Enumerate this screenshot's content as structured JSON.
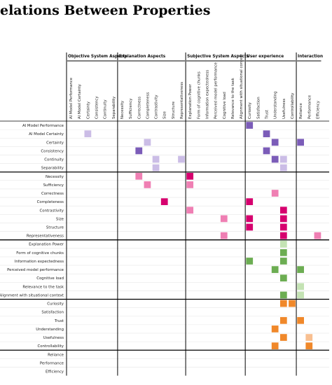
{
  "title": "elations Between Properties",
  "col_groups": [
    {
      "label": "Objective System Aspects",
      "cols": [
        "AI Model Performance",
        "AI Model Certainty",
        "Certainty",
        "Consistency",
        "Continuity",
        "Separability"
      ]
    },
    {
      "label": "Explanation Aspects",
      "cols": [
        "Necessity",
        "Sufficiency",
        "Correctness",
        "Completeness",
        "Contrastivity",
        "Size",
        "Structure",
        "Representativeness"
      ]
    },
    {
      "label": "Subjective System Aspects",
      "cols": [
        "Explanation Power",
        "Form of cognitive chunks",
        "Information expectedness",
        "Perceived model performance",
        "Cognitive load",
        "Relevance to the task",
        "Alignment with situational context"
      ]
    },
    {
      "label": "User experience",
      "cols": [
        "Curiosity",
        "Satisfaction",
        "Trust",
        "Understanding",
        "Usefulness",
        "Controllability"
      ]
    },
    {
      "label": "Interaction",
      "cols": [
        "Reliance",
        "Performance",
        "Efficiency"
      ]
    }
  ],
  "row_groups": [
    [
      "AI Model Performance",
      "AI Model Certainty",
      "Certainty",
      "Consistency",
      "Continuity",
      "Separability"
    ],
    [
      "Necessity",
      "Sufficiency",
      "Correctness",
      "Completeness",
      "Contrastivity",
      "Size",
      "Structure",
      "Representativeness"
    ],
    [
      "Explanation Power",
      "Form of cognitive chunks",
      "Information expectedness",
      "Perceived model performance",
      "Cognitive load",
      "Relevance to the task",
      "Alignment with situational context"
    ],
    [
      "Curiosity",
      "Satisfaction",
      "Trust",
      "Understanding",
      "Usefulness",
      "Controllability"
    ],
    [
      "Reliance",
      "Performance",
      "Efficiency"
    ]
  ],
  "colors": {
    "purple_dark": "#7b5cb8",
    "purple_light": "#cbbde6",
    "magenta_dark": "#d6006e",
    "magenta_mid": "#ef7fb3",
    "green_dark": "#6cad52",
    "green_light": "#c4e3b4",
    "orange_dark": "#f0882a",
    "orange_light": "#f8bf91"
  },
  "cells": [
    {
      "row": 0,
      "col": 21,
      "color": "purple_dark"
    },
    {
      "row": 1,
      "col": 2,
      "color": "purple_light"
    },
    {
      "row": 1,
      "col": 23,
      "color": "purple_dark"
    },
    {
      "row": 2,
      "col": 9,
      "color": "purple_light"
    },
    {
      "row": 2,
      "col": 24,
      "color": "purple_dark"
    },
    {
      "row": 2,
      "col": 27,
      "color": "purple_dark"
    },
    {
      "row": 3,
      "col": 8,
      "color": "purple_dark"
    },
    {
      "row": 3,
      "col": 23,
      "color": "purple_dark"
    },
    {
      "row": 4,
      "col": 10,
      "color": "purple_light"
    },
    {
      "row": 4,
      "col": 13,
      "color": "purple_light"
    },
    {
      "row": 4,
      "col": 24,
      "color": "purple_dark"
    },
    {
      "row": 4,
      "col": 25,
      "color": "purple_light"
    },
    {
      "row": 5,
      "col": 10,
      "color": "purple_light"
    },
    {
      "row": 5,
      "col": 25,
      "color": "purple_light"
    },
    {
      "row": 6,
      "col": 8,
      "color": "magenta_mid"
    },
    {
      "row": 6,
      "col": 14,
      "color": "magenta_dark"
    },
    {
      "row": 7,
      "col": 9,
      "color": "magenta_mid"
    },
    {
      "row": 7,
      "col": 14,
      "color": "magenta_mid"
    },
    {
      "row": 8,
      "col": 24,
      "color": "magenta_mid"
    },
    {
      "row": 9,
      "col": 11,
      "color": "magenta_dark"
    },
    {
      "row": 9,
      "col": 21,
      "color": "magenta_dark"
    },
    {
      "row": 10,
      "col": 14,
      "color": "magenta_mid"
    },
    {
      "row": 10,
      "col": 25,
      "color": "magenta_dark"
    },
    {
      "row": 11,
      "col": 18,
      "color": "magenta_mid"
    },
    {
      "row": 11,
      "col": 21,
      "color": "magenta_dark"
    },
    {
      "row": 11,
      "col": 25,
      "color": "magenta_dark"
    },
    {
      "row": 12,
      "col": 21,
      "color": "magenta_dark"
    },
    {
      "row": 12,
      "col": 25,
      "color": "magenta_dark"
    },
    {
      "row": 13,
      "col": 18,
      "color": "magenta_mid"
    },
    {
      "row": 13,
      "col": 25,
      "color": "magenta_dark"
    },
    {
      "row": 13,
      "col": 29,
      "color": "magenta_mid"
    },
    {
      "row": 14,
      "col": 25,
      "color": "green_light"
    },
    {
      "row": 15,
      "col": 25,
      "color": "green_dark"
    },
    {
      "row": 16,
      "col": 21,
      "color": "green_dark"
    },
    {
      "row": 16,
      "col": 25,
      "color": "green_dark"
    },
    {
      "row": 17,
      "col": 24,
      "color": "green_dark"
    },
    {
      "row": 17,
      "col": 27,
      "color": "green_dark"
    },
    {
      "row": 18,
      "col": 25,
      "color": "green_dark"
    },
    {
      "row": 19,
      "col": 27,
      "color": "green_light"
    },
    {
      "row": 20,
      "col": 25,
      "color": "green_dark"
    },
    {
      "row": 20,
      "col": 27,
      "color": "green_light"
    },
    {
      "row": 21,
      "col": 25,
      "color": "orange_dark"
    },
    {
      "row": 21,
      "col": 26,
      "color": "orange_dark"
    },
    {
      "row": 23,
      "col": 25,
      "color": "orange_dark"
    },
    {
      "row": 23,
      "col": 27,
      "color": "orange_dark"
    },
    {
      "row": 24,
      "col": 24,
      "color": "orange_dark"
    },
    {
      "row": 25,
      "col": 25,
      "color": "orange_dark"
    },
    {
      "row": 25,
      "col": 28,
      "color": "orange_light"
    },
    {
      "row": 26,
      "col": 24,
      "color": "orange_dark"
    },
    {
      "row": 26,
      "col": 28,
      "color": "orange_dark"
    }
  ]
}
